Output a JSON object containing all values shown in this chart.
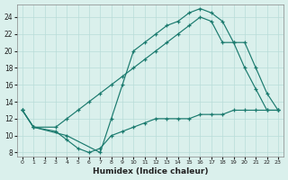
{
  "xlabel": "Humidex (Indice chaleur)",
  "bg_color": "#daf0ec",
  "line_color": "#1a7a6e",
  "grid_color": "#b8dcd8",
  "xlim": [
    -0.5,
    23.5
  ],
  "ylim": [
    7.5,
    25.5
  ],
  "xticks": [
    0,
    1,
    2,
    3,
    4,
    5,
    6,
    7,
    8,
    9,
    10,
    11,
    12,
    13,
    14,
    15,
    16,
    17,
    18,
    19,
    20,
    21,
    22,
    23
  ],
  "yticks": [
    8,
    10,
    12,
    14,
    16,
    18,
    20,
    22,
    24
  ],
  "line1_x": [
    0,
    1,
    3,
    4,
    5,
    6,
    7,
    8,
    9,
    10,
    11,
    12,
    13,
    14,
    15,
    16,
    17,
    18,
    19,
    20,
    21,
    22,
    23
  ],
  "line1_y": [
    13,
    11,
    11,
    12,
    13,
    14,
    15,
    16,
    17,
    18,
    19,
    20,
    21,
    22,
    23,
    24,
    23.5,
    21,
    21,
    21,
    18,
    15,
    13
  ],
  "line2_x": [
    0,
    1,
    4,
    7,
    8,
    9,
    10,
    11,
    12,
    13,
    14,
    15,
    16,
    17,
    18,
    19,
    20,
    21,
    22,
    23
  ],
  "line2_y": [
    13,
    11,
    10,
    8,
    12,
    16,
    20,
    21,
    22,
    23,
    23.5,
    24.5,
    25,
    24.5,
    23.5,
    21,
    18,
    15.5,
    13,
    13
  ],
  "line3_x": [
    0,
    1,
    3,
    4,
    5,
    6,
    7,
    8,
    9,
    10,
    11,
    12,
    13,
    14,
    15,
    16,
    17,
    18,
    19,
    20,
    21,
    22,
    23
  ],
  "line3_y": [
    13,
    11,
    10.5,
    9.5,
    8.5,
    8,
    8.5,
    10,
    10.5,
    11,
    11.5,
    12,
    12,
    12,
    12,
    12.5,
    12.5,
    12.5,
    13,
    13,
    13,
    13,
    13
  ]
}
